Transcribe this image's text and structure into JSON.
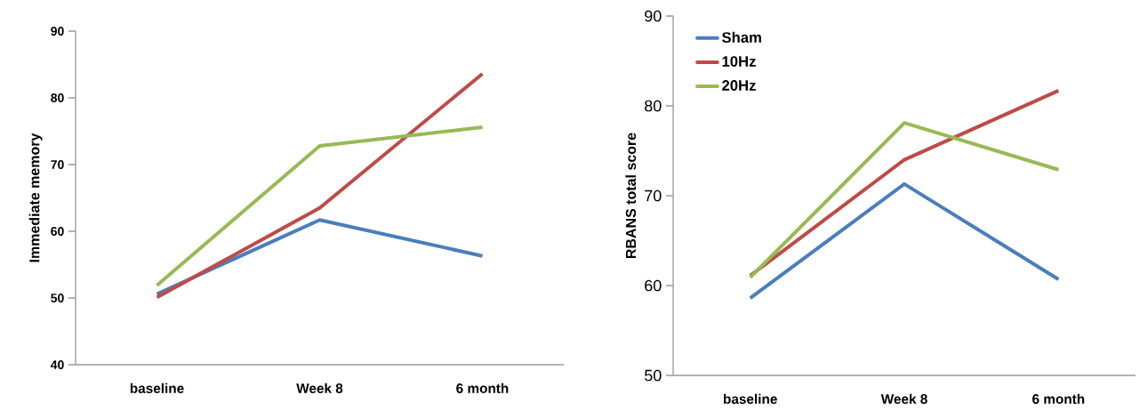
{
  "chart_data": [
    {
      "type": "line",
      "ylabel": "Immediate memory",
      "categories": [
        "baseline",
        "Week 8",
        "6 month"
      ],
      "ylim": [
        40,
        90
      ],
      "yticks": [
        40,
        50,
        60,
        70,
        80,
        90
      ],
      "series": [
        {
          "color": "#4a7ebb",
          "values": [
            50.6,
            61.7,
            56.3
          ]
        },
        {
          "color": "#be4b48",
          "values": [
            50.1,
            63.5,
            83.6
          ]
        },
        {
          "color": "#98b954",
          "values": [
            51.9,
            72.8,
            75.6
          ]
        }
      ]
    },
    {
      "type": "line",
      "ylabel": "RBANS total score",
      "categories": [
        "baseline",
        "Week 8",
        "6 month"
      ],
      "ylim": [
        50,
        90
      ],
      "yticks": [
        50,
        60,
        70,
        80,
        90
      ],
      "legend": "top left",
      "series": [
        {
          "name": "Sham",
          "color": "#4a7ebb",
          "values": [
            58.6,
            71.3,
            60.7
          ]
        },
        {
          "name": "10Hz",
          "color": "#be4b48",
          "values": [
            61.1,
            74.0,
            81.7
          ]
        },
        {
          "name": "20Hz",
          "color": "#98b954",
          "values": [
            60.9,
            78.1,
            72.9
          ]
        }
      ]
    }
  ]
}
